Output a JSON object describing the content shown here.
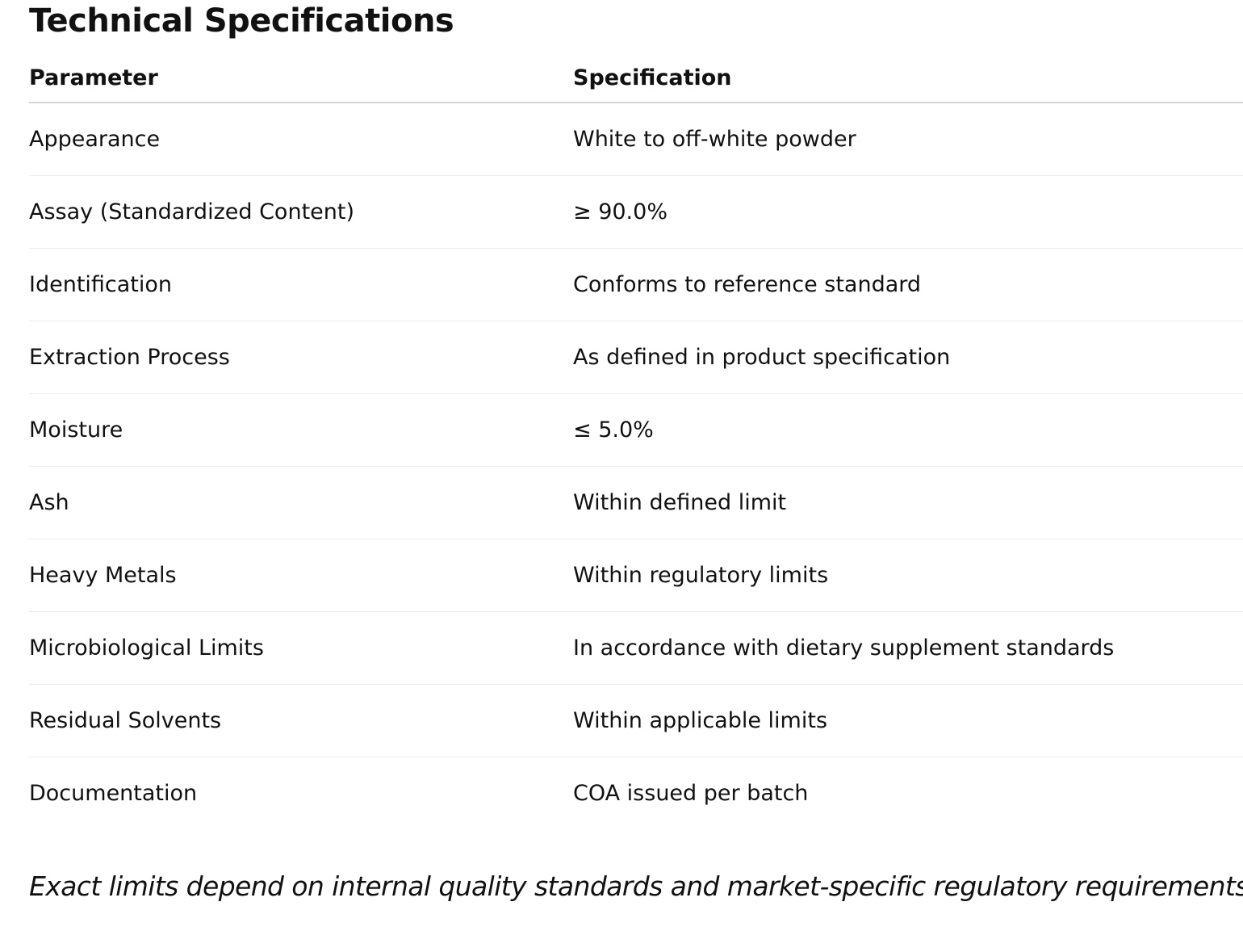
{
  "title": "Technical Specifications",
  "table": {
    "headers": [
      "Parameter",
      "Specification"
    ],
    "rows": [
      {
        "parameter": "Appearance",
        "specification": "White to off-white powder"
      },
      {
        "parameter": "Assay (Standardized Content)",
        "specification": "≥ 90.0%"
      },
      {
        "parameter": "Identification",
        "specification": "Conforms to reference standard"
      },
      {
        "parameter": "Extraction Process",
        "specification": "As defined in product specification"
      },
      {
        "parameter": "Moisture",
        "specification": "≤ 5.0%"
      },
      {
        "parameter": "Ash",
        "specification": "Within defined limit"
      },
      {
        "parameter": "Heavy Metals",
        "specification": "Within regulatory limits"
      },
      {
        "parameter": "Microbiological Limits",
        "specification": "In accordance with dietary supplement standards"
      },
      {
        "parameter": "Residual Solvents",
        "specification": "Within applicable limits"
      },
      {
        "parameter": "Documentation",
        "specification": "COA issued per batch"
      }
    ]
  },
  "footnote": "Exact limits depend on internal quality standards and market-specific regulatory requirements."
}
